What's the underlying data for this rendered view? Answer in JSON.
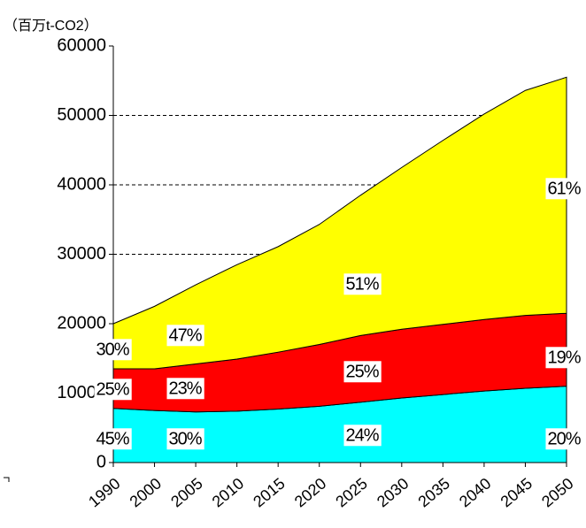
{
  "chart_data": {
    "type": "stacked_area",
    "y_label": "（百万t-CO2）",
    "categories": [
      "1990",
      "2000",
      "2005",
      "2010",
      "2015",
      "2020",
      "2025",
      "2030",
      "2035",
      "2040",
      "2045",
      "2050"
    ],
    "series": [
      {
        "name": null,
        "color": "#00ffff",
        "values": [
          7800,
          7500,
          7300,
          7400,
          7700,
          8100,
          8700,
          9300,
          9800,
          10300,
          10700,
          11000
        ]
      },
      {
        "name": null,
        "color": "#ff0000",
        "values": [
          5700,
          6000,
          6900,
          7500,
          8200,
          8900,
          9600,
          9900,
          10100,
          10300,
          10500,
          10500
        ]
      },
      {
        "name": null,
        "color": "#ffff00",
        "values": [
          6500,
          9000,
          11400,
          13600,
          15200,
          17300,
          20200,
          23300,
          26500,
          29600,
          32400,
          34000
        ]
      }
    ],
    "ylim": [
      0,
      60000
    ],
    "yticks": [
      0,
      10000,
      20000,
      30000,
      40000,
      50000,
      60000
    ],
    "grid": true,
    "annotations": [
      "30%",
      "25%",
      "45%",
      "47%",
      "23%",
      "30%",
      "51%",
      "25%",
      "24%",
      "61%",
      "19%",
      "20%"
    ]
  }
}
